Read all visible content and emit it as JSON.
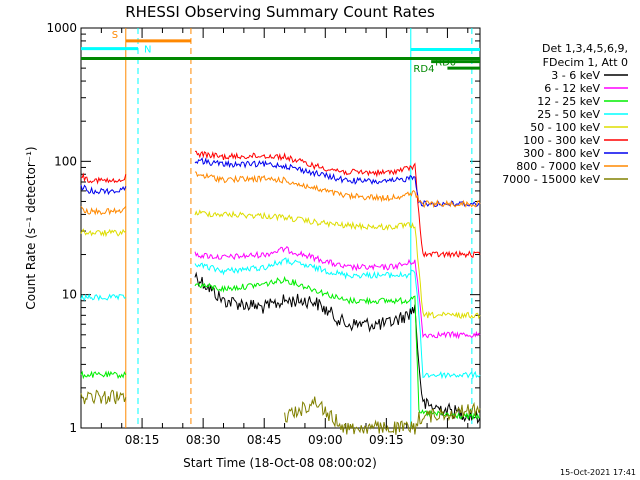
{
  "chart_data": {
    "type": "line",
    "title": "RHESSI Observing Summary Count Rates",
    "xlabel": "Start Time (18-Oct-08 08:00:02)",
    "ylabel": "Count Rate (s⁻¹ detector⁻¹)",
    "y_scale": "log",
    "ylim": [
      1,
      1000
    ],
    "xlim": [
      "08:00",
      "09:38"
    ],
    "x_ticks": [
      "08:15",
      "08:30",
      "08:45",
      "09:00",
      "09:15",
      "09:30"
    ],
    "y_ticks": [
      "1",
      "10",
      "100",
      "1000"
    ],
    "legend_header": [
      "Det 1,3,4,5,6,9,",
      "FDecim 1, Att 0"
    ],
    "legend_placement": "right",
    "gap": [
      "08:11",
      "08:27"
    ],
    "series": [
      {
        "name": "3 - 6 keV",
        "color": "#000000",
        "x": [
          "08:00",
          "08:10",
          "08:11",
          "08:27",
          "08:28",
          "08:35",
          "08:45",
          "08:50",
          "08:57",
          "09:05",
          "09:15",
          "09:20",
          "09:22",
          "09:23",
          "09:24",
          "09:38"
        ],
        "y": [
          null,
          null,
          null,
          null,
          14,
          9,
          8,
          9,
          9,
          6,
          6,
          7,
          8,
          3,
          1.5,
          1.2
        ]
      },
      {
        "name": "6 - 12 keV",
        "color": "#ff00ff",
        "x": [
          "08:00",
          "08:10",
          "08:11",
          "08:27",
          "08:28",
          "08:35",
          "08:45",
          "08:50",
          "08:57",
          "09:05",
          "09:15",
          "09:20",
          "09:22",
          "09:23",
          "09:24",
          "09:38"
        ],
        "y": [
          null,
          null,
          null,
          null,
          20,
          19,
          20,
          22,
          19,
          16,
          16,
          17,
          18,
          10,
          5,
          5
        ]
      },
      {
        "name": "12 - 25 keV",
        "color": "#00ee00",
        "x": [
          "08:00",
          "08:02",
          "08:10",
          "08:11",
          "08:27",
          "08:28",
          "08:35",
          "08:45",
          "08:50",
          "08:57",
          "09:05",
          "09:15",
          "09:20",
          "09:22",
          "09:23",
          "09:38"
        ],
        "y": [
          2.5,
          2.5,
          2.5,
          2.5,
          null,
          12,
          11,
          12,
          13,
          11,
          9,
          9,
          9,
          10,
          1.3,
          1.2
        ]
      },
      {
        "name": "25 - 50 keV",
        "color": "#00ffff",
        "x": [
          "08:00",
          "08:02",
          "08:10",
          "08:11",
          "08:27",
          "08:28",
          "08:35",
          "08:45",
          "08:50",
          "08:57",
          "09:05",
          "09:15",
          "09:20",
          "09:22",
          "09:23",
          "09:24",
          "09:38"
        ],
        "y": [
          9.5,
          9.5,
          9.5,
          9.5,
          null,
          17,
          15,
          16,
          18,
          16,
          14,
          14,
          14,
          15,
          7,
          2.5,
          2.5
        ]
      },
      {
        "name": "50 - 100 keV",
        "color": "#dddd00",
        "x": [
          "08:00",
          "08:02",
          "08:10",
          "08:11",
          "08:27",
          "08:28",
          "08:35",
          "08:45",
          "08:50",
          "08:57",
          "09:05",
          "09:15",
          "09:20",
          "09:22",
          "09:23",
          "09:24",
          "09:38"
        ],
        "y": [
          30,
          29,
          29,
          30,
          null,
          41,
          40,
          39,
          38,
          35,
          33,
          32,
          33,
          33,
          15,
          7,
          7
        ]
      },
      {
        "name": "100 - 300 keV",
        "color": "#ff0000",
        "x": [
          "08:00",
          "08:02",
          "08:10",
          "08:11",
          "08:27",
          "08:28",
          "08:35",
          "08:45",
          "08:50",
          "08:57",
          "09:05",
          "09:15",
          "09:20",
          "09:22",
          "09:23",
          "09:24",
          "09:38"
        ],
        "y": [
          78,
          73,
          70,
          80,
          null,
          115,
          108,
          110,
          108,
          93,
          83,
          82,
          88,
          92,
          40,
          20,
          20
        ]
      },
      {
        "name": "300 - 800 keV",
        "color": "#0000ee",
        "x": [
          "08:00",
          "08:02",
          "08:10",
          "08:11",
          "08:27",
          "08:28",
          "08:35",
          "08:45",
          "08:50",
          "08:57",
          "09:05",
          "09:15",
          "09:20",
          "09:22",
          "09:23",
          "09:24",
          "09:38"
        ],
        "y": [
          65,
          60,
          60,
          65,
          null,
          102,
          95,
          95,
          93,
          82,
          72,
          70,
          74,
          78,
          50,
          48,
          48
        ]
      },
      {
        "name": "800 - 7000 keV",
        "color": "#ff8800",
        "x": [
          "08:00",
          "08:02",
          "08:10",
          "08:11",
          "08:27",
          "08:28",
          "08:35",
          "08:45",
          "08:50",
          "08:57",
          "09:05",
          "09:15",
          "09:20",
          "09:22",
          "09:23",
          "09:24",
          "09:38"
        ],
        "y": [
          44,
          42,
          42,
          46,
          null,
          80,
          73,
          74,
          72,
          63,
          55,
          53,
          56,
          58,
          50,
          48,
          48
        ]
      },
      {
        "name": "7000 - 15000 keV",
        "color": "#808000",
        "x": [
          "08:00",
          "08:02",
          "08:10",
          "08:11",
          "08:27",
          "08:28",
          "08:50",
          "08:58",
          "09:00",
          "09:05",
          "09:15",
          "09:20",
          "09:22",
          "09:23",
          "09:38"
        ],
        "y": [
          1.7,
          1.7,
          1.7,
          1.7,
          null,
          null,
          1.2,
          1.6,
          1.3,
          1,
          1,
          1,
          1,
          1.2,
          1.4
        ]
      }
    ],
    "markers": [
      {
        "label": "S",
        "color": "#ff8800",
        "bar": [
          "08:11",
          "08:27"
        ],
        "level": 800
      },
      {
        "label": "N",
        "color": "#00ffff",
        "bar": [
          "08:00",
          "08:14"
        ],
        "level": 700,
        "end": "08:14"
      },
      {
        "label": "RD0",
        "color": "#008800",
        "bar": [
          "09:26",
          "09:38"
        ],
        "level": 560
      },
      {
        "label": "RD4",
        "color": "#008800",
        "bar": [
          "09:30",
          "09:38"
        ],
        "level": 500
      },
      {
        "color": "#00ffff",
        "bar": [
          "09:21",
          "09:38"
        ],
        "level": 690
      }
    ],
    "baseline_bar": {
      "color": "#008800",
      "bar": [
        "08:00",
        "09:38"
      ],
      "level": 590
    },
    "vlines": [
      {
        "x": "08:11",
        "color": "#ff8800",
        "style": "solid"
      },
      {
        "x": "08:14",
        "color": "#00ffff",
        "style": "dashed"
      },
      {
        "x": "08:27",
        "color": "#ff8800",
        "style": "dashed"
      },
      {
        "x": "09:21",
        "color": "#00ffff",
        "style": "solid"
      },
      {
        "x": "09:36",
        "color": "#00ffff",
        "style": "dashed"
      }
    ]
  },
  "footer": {
    "date_stamp": "15-Oct-2021 17:41"
  }
}
